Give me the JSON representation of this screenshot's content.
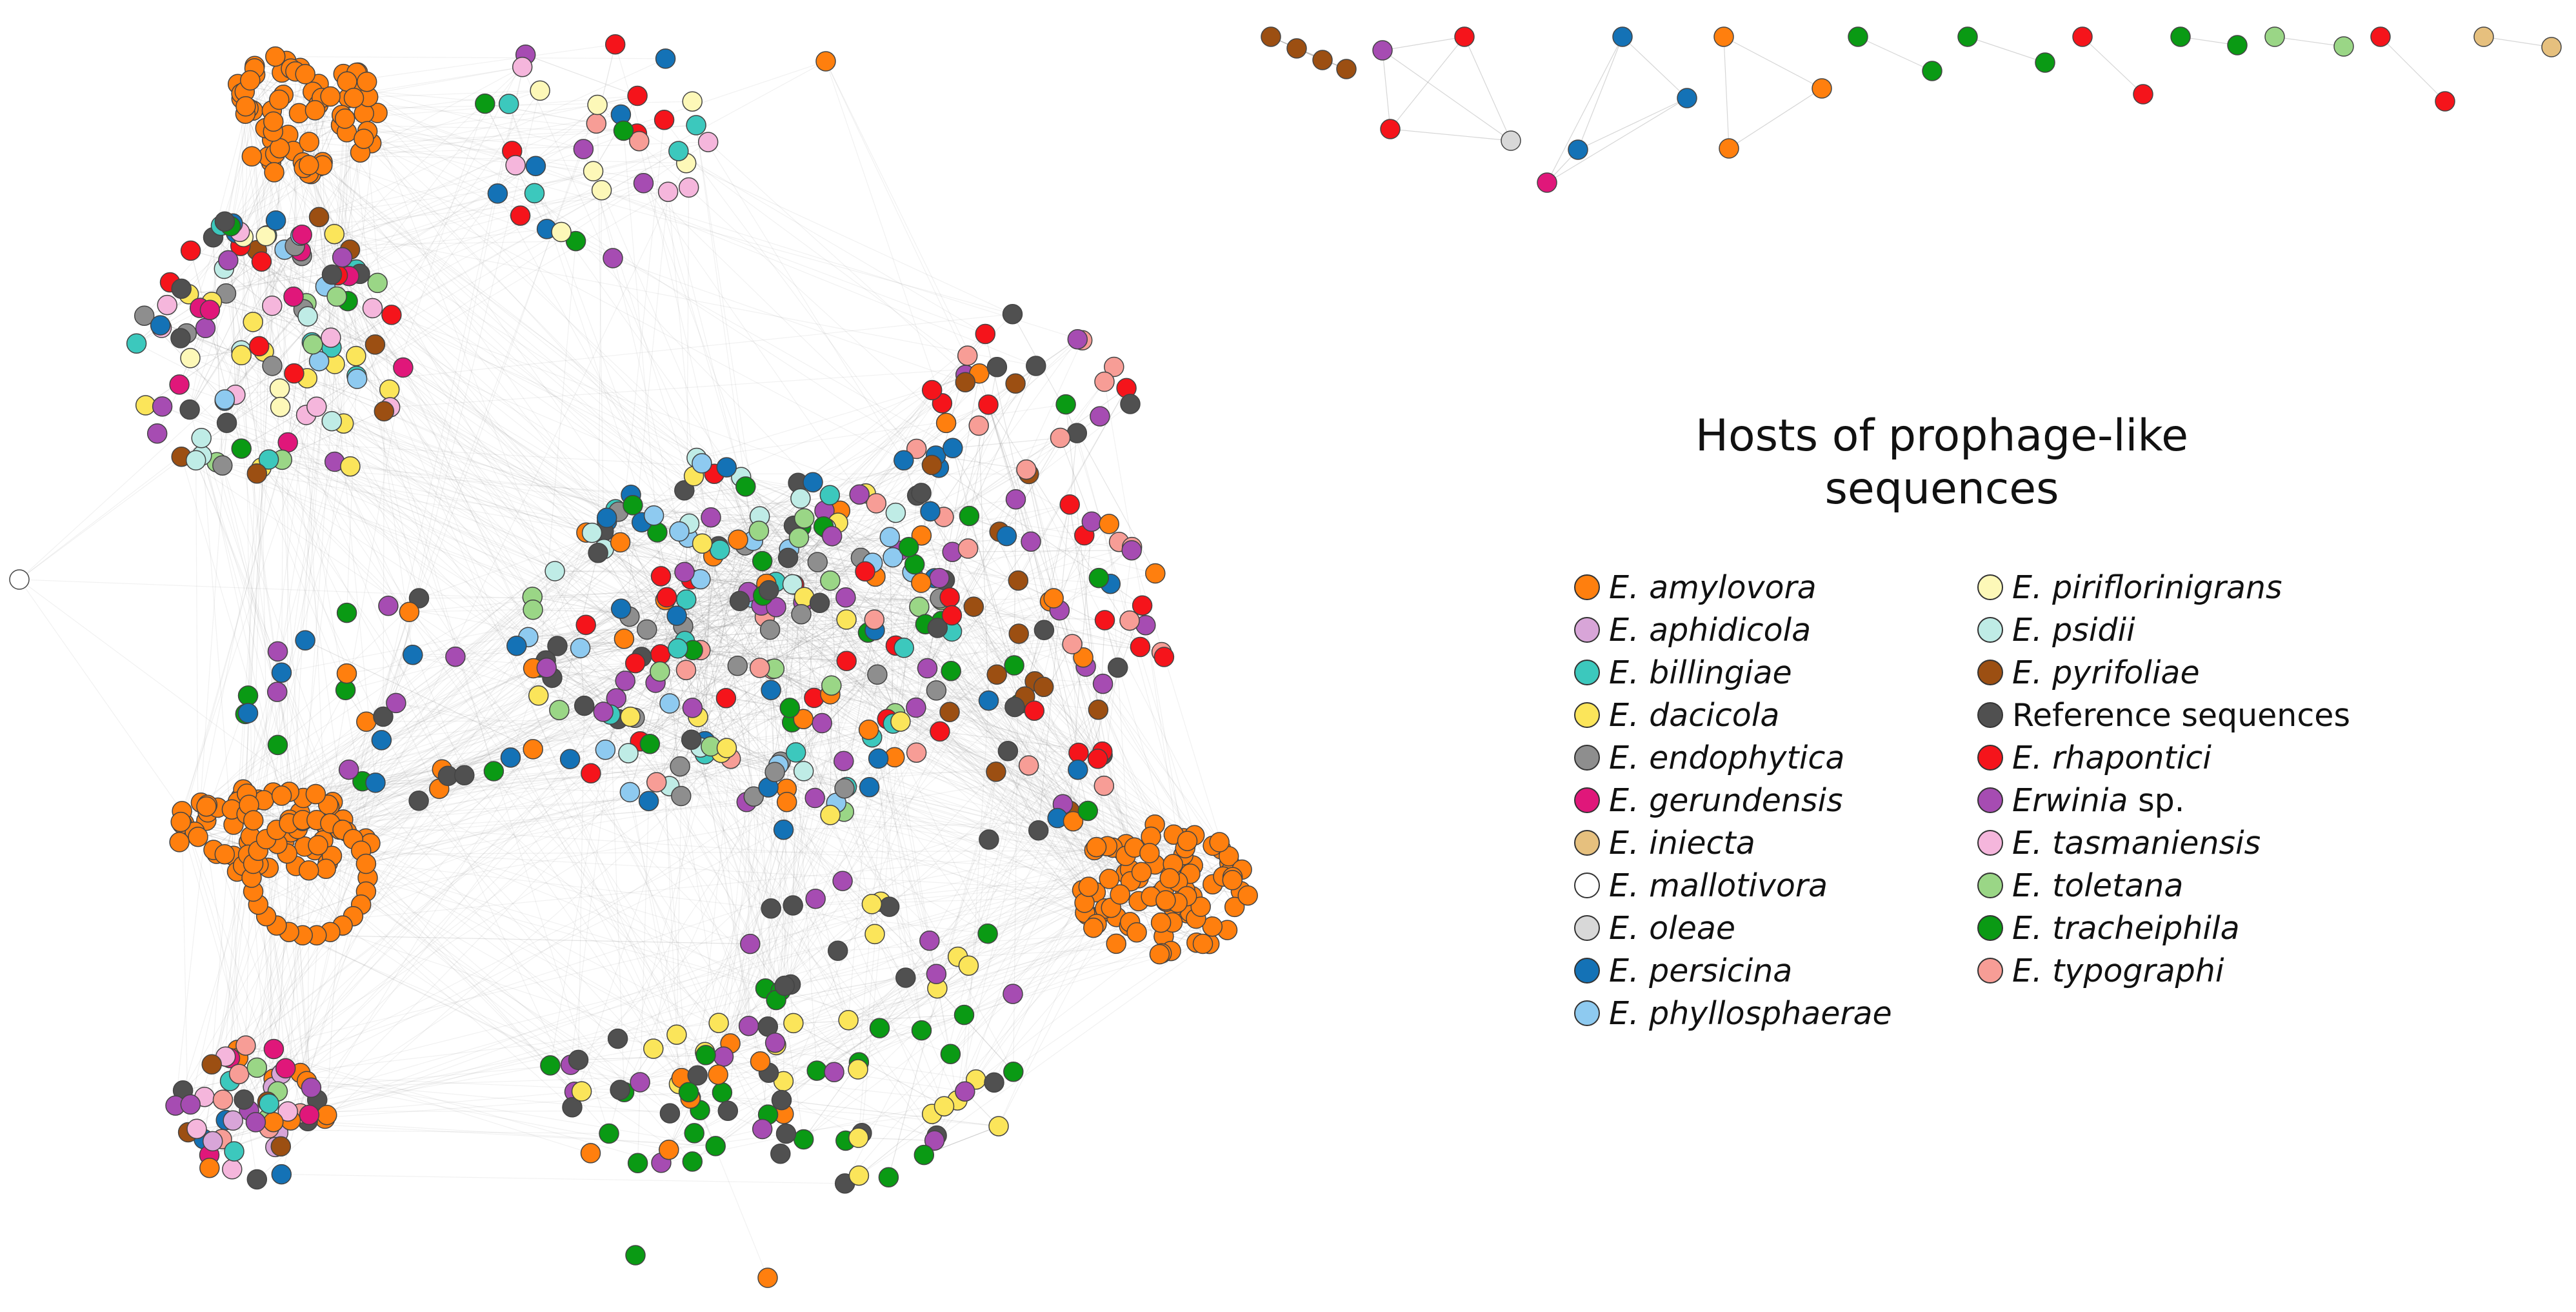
{
  "legend": {
    "title_line1": "Hosts of prophage-like",
    "title_line2": "sequences",
    "left": [
      {
        "genus": "E. amylovora",
        "suffix": "",
        "color": "#ff7f0e"
      },
      {
        "genus": "E. aphidicola",
        "suffix": "",
        "color": "#d8a5d8"
      },
      {
        "genus": "E. billingiae",
        "suffix": "",
        "color": "#3cc8bd"
      },
      {
        "genus": "E. dacicola",
        "suffix": "",
        "color": "#fbe55a"
      },
      {
        "genus": "E. endophytica",
        "suffix": "",
        "color": "#8e8e8e"
      },
      {
        "genus": "E. gerundensis",
        "suffix": "",
        "color": "#e0177a"
      },
      {
        "genus": "E. iniecta",
        "suffix": "",
        "color": "#e6c07e"
      },
      {
        "genus": "E. mallotivora",
        "suffix": "",
        "color": "#ffffff"
      },
      {
        "genus": "E. oleae",
        "suffix": "",
        "color": "#d8d8d8"
      },
      {
        "genus": "E. persicina",
        "suffix": "",
        "color": "#1472b6"
      },
      {
        "genus": "E. phyllosphaerae",
        "suffix": "",
        "color": "#8ecaf0"
      }
    ],
    "right": [
      {
        "genus": "E. piriflorinigrans",
        "suffix": "",
        "color": "#fdf8b8"
      },
      {
        "genus": "E. psidii",
        "suffix": "",
        "color": "#bfece6"
      },
      {
        "genus": "E. pyrifoliae",
        "suffix": "",
        "color": "#9c4f12"
      },
      {
        "genus": "",
        "suffix": "Reference sequences",
        "color": "#505050"
      },
      {
        "genus": "E. rhapontici",
        "suffix": "",
        "color": "#f5141b"
      },
      {
        "genus": "Erwinia",
        "suffix": " sp.",
        "color": "#a64cb2"
      },
      {
        "genus": "E. tasmaniensis",
        "suffix": "",
        "color": "#f5b6dc"
      },
      {
        "genus": "E. toletana",
        "suffix": "",
        "color": "#9ad686"
      },
      {
        "genus": "E. tracheiphila",
        "suffix": "",
        "color": "#0a9a14"
      },
      {
        "genus": "E. typographi",
        "suffix": "",
        "color": "#f79d96"
      }
    ]
  },
  "colors": {
    "edge": "#8a8a8a",
    "node_stroke": "#444444"
  }
}
